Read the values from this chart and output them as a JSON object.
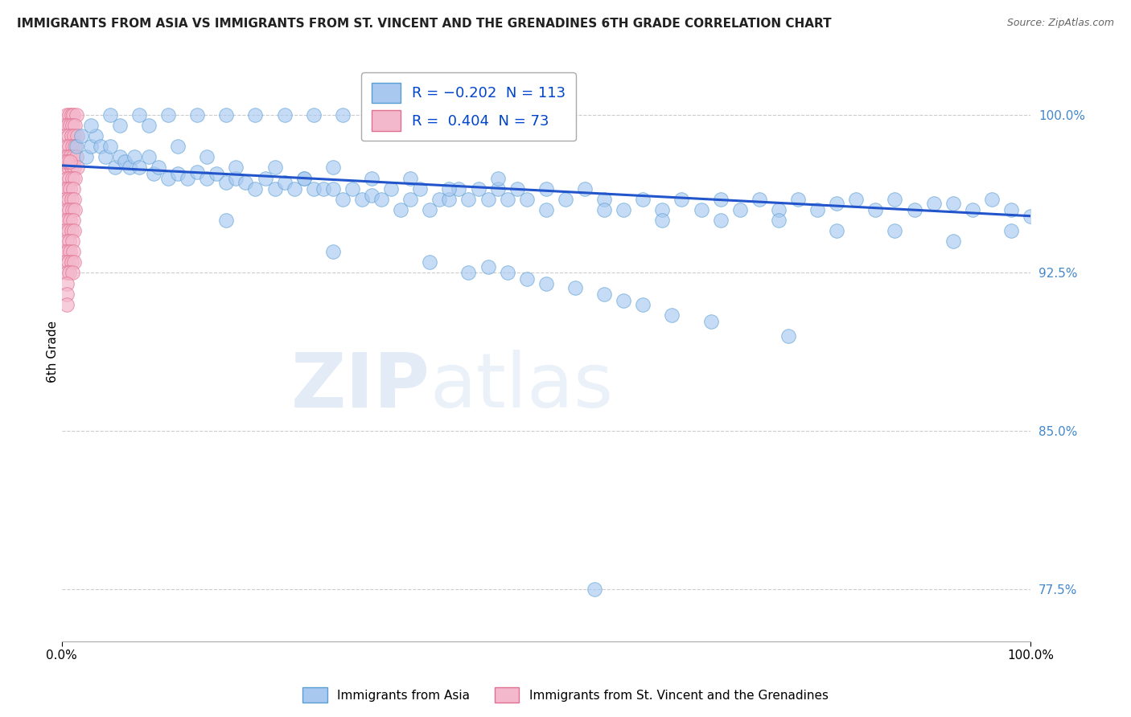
{
  "title": "IMMIGRANTS FROM ASIA VS IMMIGRANTS FROM ST. VINCENT AND THE GRENADINES 6TH GRADE CORRELATION CHART",
  "source": "Source: ZipAtlas.com",
  "ylabel": "6th Grade",
  "xlim": [
    0.0,
    100.0
  ],
  "ylim": [
    75.0,
    102.5
  ],
  "yticks": [
    77.5,
    85.0,
    92.5,
    100.0
  ],
  "ytick_labels": [
    "77.5%",
    "85.0%",
    "92.5%",
    "100.0%"
  ],
  "xtick_labels": [
    "0.0%",
    "100.0%"
  ],
  "blue_scatter_x": [
    1.5,
    2.0,
    2.5,
    3.0,
    3.5,
    4.0,
    4.5,
    5.0,
    5.5,
    6.0,
    6.5,
    7.0,
    7.5,
    8.0,
    9.0,
    9.5,
    10.0,
    11.0,
    12.0,
    13.0,
    14.0,
    15.0,
    16.0,
    17.0,
    18.0,
    19.0,
    20.0,
    21.0,
    22.0,
    23.0,
    24.0,
    25.0,
    26.0,
    27.0,
    28.0,
    29.0,
    30.0,
    31.0,
    32.0,
    33.0,
    34.0,
    35.0,
    36.0,
    37.0,
    38.0,
    39.0,
    40.0,
    41.0,
    42.0,
    43.0,
    44.0,
    45.0,
    46.0,
    47.0,
    48.0,
    50.0,
    52.0,
    54.0,
    56.0,
    58.0,
    60.0,
    62.0,
    64.0,
    66.0,
    68.0,
    70.0,
    72.0,
    74.0,
    76.0,
    78.0,
    80.0,
    82.0,
    84.0,
    86.0,
    88.0,
    90.0,
    92.0,
    94.0,
    96.0,
    98.0,
    100.0,
    3.0,
    6.0,
    9.0,
    12.0,
    15.0,
    18.0,
    22.0,
    25.0,
    28.0,
    32.0,
    36.0,
    40.0,
    45.0,
    50.0,
    56.0,
    62.0,
    68.0,
    74.0,
    80.0,
    86.0,
    92.0,
    98.0,
    5.0,
    8.0,
    11.0,
    14.0,
    17.0,
    20.0,
    23.0,
    26.0,
    29.0,
    33.0
  ],
  "blue_scatter_y": [
    98.5,
    99.0,
    98.0,
    98.5,
    99.0,
    98.5,
    98.0,
    98.5,
    97.5,
    98.0,
    97.8,
    97.5,
    98.0,
    97.5,
    98.0,
    97.2,
    97.5,
    97.0,
    97.2,
    97.0,
    97.3,
    97.0,
    97.2,
    96.8,
    97.0,
    96.8,
    96.5,
    97.0,
    96.5,
    96.8,
    96.5,
    97.0,
    96.5,
    96.5,
    96.5,
    96.0,
    96.5,
    96.0,
    96.2,
    96.0,
    96.5,
    95.5,
    96.0,
    96.5,
    95.5,
    96.0,
    96.0,
    96.5,
    96.0,
    96.5,
    96.0,
    96.5,
    96.0,
    96.5,
    96.0,
    96.5,
    96.0,
    96.5,
    96.0,
    95.5,
    96.0,
    95.5,
    96.0,
    95.5,
    96.0,
    95.5,
    96.0,
    95.5,
    96.0,
    95.5,
    95.8,
    96.0,
    95.5,
    96.0,
    95.5,
    95.8,
    95.8,
    95.5,
    96.0,
    95.5,
    95.2,
    99.5,
    99.5,
    99.5,
    98.5,
    98.0,
    97.5,
    97.5,
    97.0,
    97.5,
    97.0,
    97.0,
    96.5,
    97.0,
    95.5,
    95.5,
    95.0,
    95.0,
    95.0,
    94.5,
    94.5,
    94.0,
    94.5,
    100.0,
    100.0,
    100.0,
    100.0,
    100.0,
    100.0,
    100.0,
    100.0,
    100.0,
    100.0
  ],
  "pink_scatter_x": [
    0.5,
    0.8,
    1.0,
    1.2,
    1.5,
    0.3,
    0.6,
    0.9,
    1.1,
    1.4,
    0.4,
    0.7,
    1.0,
    1.3,
    1.6,
    0.5,
    0.8,
    1.1,
    1.4,
    0.3,
    0.6,
    0.9,
    1.2,
    1.5,
    0.4,
    0.7,
    1.0,
    1.3,
    1.6,
    0.5,
    0.8,
    1.1,
    1.4,
    0.3,
    0.6,
    0.9,
    1.2,
    0.4,
    0.7,
    1.0,
    1.3,
    0.5,
    0.8,
    1.1,
    1.4,
    0.3,
    0.6,
    0.9,
    1.2,
    0.4,
    0.7,
    1.0,
    1.3,
    0.5,
    0.8,
    1.1,
    0.3,
    0.6,
    0.9,
    1.2,
    0.4,
    0.7,
    1.0,
    1.3,
    0.5,
    0.8,
    1.1,
    0.3,
    0.6,
    0.9,
    0.5,
    0.5,
    0.5
  ],
  "pink_scatter_y": [
    100.0,
    100.0,
    100.0,
    100.0,
    100.0,
    99.5,
    99.5,
    99.5,
    99.5,
    99.5,
    99.0,
    99.0,
    99.0,
    99.0,
    99.0,
    98.5,
    98.5,
    98.5,
    98.5,
    98.0,
    98.0,
    98.0,
    98.0,
    98.0,
    97.5,
    97.5,
    97.5,
    97.5,
    97.5,
    97.0,
    97.0,
    97.0,
    97.0,
    96.5,
    96.5,
    96.5,
    96.5,
    96.0,
    96.0,
    96.0,
    96.0,
    95.5,
    95.5,
    95.5,
    95.5,
    95.0,
    95.0,
    95.0,
    95.0,
    94.5,
    94.5,
    94.5,
    94.5,
    94.0,
    94.0,
    94.0,
    93.5,
    93.5,
    93.5,
    93.5,
    93.0,
    93.0,
    93.0,
    93.0,
    92.5,
    92.5,
    92.5,
    97.8,
    97.8,
    97.8,
    92.0,
    91.5,
    91.0
  ],
  "blue_trendline_x": [
    0.0,
    100.0
  ],
  "blue_trendline_y": [
    97.6,
    95.2
  ],
  "isolated_blue_x": [
    17.0,
    28.0,
    38.0,
    42.0,
    44.0,
    46.0,
    48.0,
    50.0,
    53.0,
    56.0,
    58.0,
    60.0,
    63.0,
    67.0,
    75.0
  ],
  "isolated_blue_y": [
    95.0,
    93.5,
    93.0,
    92.5,
    92.8,
    92.5,
    92.2,
    92.0,
    91.8,
    91.5,
    91.2,
    91.0,
    90.5,
    90.2,
    89.5
  ],
  "outlier_blue_x": [
    55.0
  ],
  "outlier_blue_y": [
    77.5
  ],
  "watermark_zip": "ZIP",
  "watermark_atlas": "atlas",
  "background_color": "#ffffff",
  "grid_color": "#cccccc",
  "title_fontsize": 11,
  "blue_color": "#a8c8f0",
  "blue_edge": "#5a9fd4",
  "pink_color": "#f4b8cc",
  "pink_edge": "#e07090",
  "trend_color": "#2255cc"
}
